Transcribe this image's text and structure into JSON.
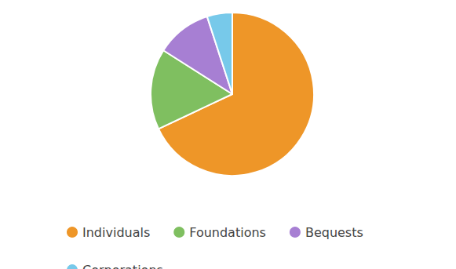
{
  "chart_data": {
    "type": "pie",
    "categories": [
      "Individuals",
      "Foundations",
      "Bequests",
      "Corporations"
    ],
    "values": [
      68,
      16,
      11,
      5
    ],
    "colors": [
      "#ee9628",
      "#7fbf60",
      "#a77fd3",
      "#77c9ea"
    ],
    "legend": "bottom"
  }
}
